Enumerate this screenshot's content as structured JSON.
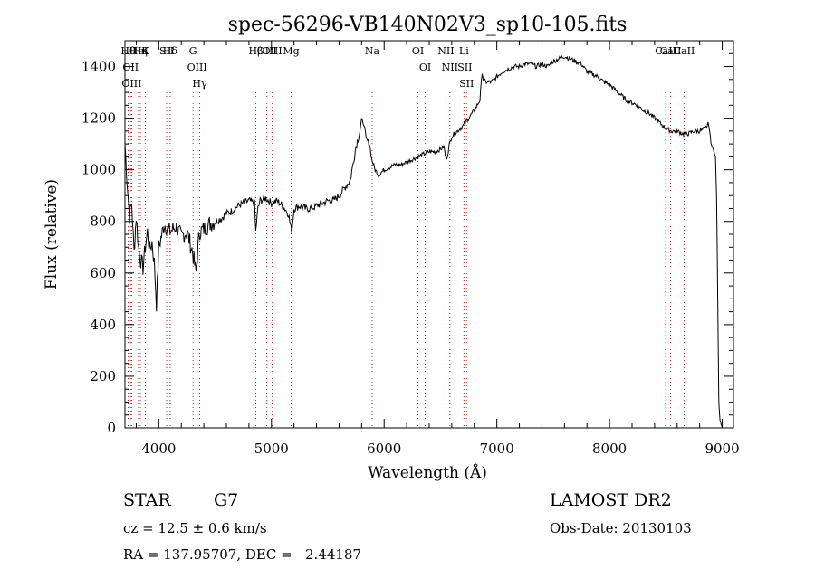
{
  "chart_data": {
    "type": "line",
    "title": "spec-56296-VB140N02V3_sp10-105.fits",
    "xlabel": "Wavelength (Å)",
    "ylabel": "Flux (relative)",
    "xlim": [
      3700,
      9100
    ],
    "ylim": [
      0,
      1500
    ],
    "xticks": [
      4000,
      5000,
      6000,
      7000,
      8000,
      9000
    ],
    "yticks": [
      0,
      200,
      400,
      600,
      800,
      1000,
      1200,
      1400
    ],
    "grid": false,
    "series": [
      {
        "x": [
          3700,
          3720,
          3740,
          3760,
          3780,
          3800,
          3820,
          3840,
          3860,
          3880,
          3900,
          3920,
          3940,
          3960,
          3980,
          4000,
          4050,
          4100,
          4150,
          4200,
          4250,
          4300,
          4330,
          4360,
          4400,
          4450,
          4500,
          4550,
          4600,
          4650,
          4700,
          4750,
          4800,
          4850,
          4860,
          4880,
          4900,
          4950,
          5000,
          5050,
          5100,
          5150,
          5180,
          5200,
          5250,
          5300,
          5350,
          5400,
          5450,
          5500,
          5550,
          5600,
          5650,
          5700,
          5750,
          5780,
          5800,
          5820,
          5840,
          5870,
          5890,
          5920,
          5950,
          6000,
          6050,
          6100,
          6150,
          6200,
          6250,
          6300,
          6350,
          6400,
          6450,
          6500,
          6530,
          6550,
          6563,
          6580,
          6600,
          6650,
          6700,
          6750,
          6800,
          6850,
          6870,
          6880,
          6900,
          6950,
          7000,
          7050,
          7100,
          7150,
          7200,
          7250,
          7300,
          7350,
          7400,
          7450,
          7500,
          7550,
          7600,
          7650,
          7700,
          7750,
          7800,
          7850,
          7900,
          7950,
          8000,
          8050,
          8100,
          8150,
          8200,
          8250,
          8300,
          8350,
          8400,
          8450,
          8500,
          8550,
          8600,
          8650,
          8700,
          8750,
          8800,
          8850,
          8880,
          8900,
          8920,
          8940,
          8950,
          8960,
          8970,
          8980,
          9000
        ],
        "y": [
          1100,
          950,
          820,
          870,
          680,
          820,
          700,
          650,
          620,
          700,
          760,
          690,
          720,
          640,
          480,
          700,
          790,
          760,
          780,
          740,
          760,
          680,
          600,
          760,
          770,
          790,
          800,
          810,
          830,
          840,
          860,
          870,
          880,
          870,
          760,
          850,
          880,
          890,
          870,
          880,
          860,
          830,
          760,
          850,
          860,
          850,
          850,
          860,
          870,
          880,
          880,
          900,
          930,
          960,
          1090,
          1140,
          1190,
          1180,
          1120,
          1100,
          1040,
          1000,
          980,
          1000,
          1010,
          1020,
          1020,
          1030,
          1040,
          1050,
          1060,
          1070,
          1070,
          1080,
          1090,
          1040,
          1060,
          1100,
          1130,
          1150,
          1170,
          1200,
          1230,
          1270,
          1380,
          1350,
          1340,
          1340,
          1360,
          1380,
          1390,
          1400,
          1400,
          1410,
          1410,
          1400,
          1410,
          1400,
          1420,
          1430,
          1440,
          1430,
          1420,
          1410,
          1380,
          1370,
          1360,
          1340,
          1330,
          1310,
          1290,
          1270,
          1260,
          1250,
          1230,
          1220,
          1200,
          1180,
          1160,
          1150,
          1150,
          1140,
          1140,
          1150,
          1150,
          1160,
          1180,
          1100,
          1080,
          1050,
          900,
          500,
          100,
          30,
          0
        ]
      }
    ],
    "lines": [
      {
        "labels": [
          "Hθ",
          "OII",
          "OIII"
        ],
        "x": [
          3728,
          3750,
          3760
        ]
      },
      {
        "labels": [
          "HeI"
        ],
        "x": [
          3820
        ]
      },
      {
        "labels": [
          "Hη"
        ],
        "x": [
          3836
        ]
      },
      {
        "labels": [
          "K"
        ],
        "x": [
          3880
        ]
      },
      {
        "labels": [
          "Hδ"
        ],
        "x": [
          4101
        ]
      },
      {
        "labels": [
          "SII"
        ],
        "x": [
          4070
        ]
      },
      {
        "labels": [
          "G",
          "OIII",
          "Hγ"
        ],
        "x": [
          4304,
          4340,
          4363
        ]
      },
      {
        "labels": [
          "Hβ"
        ],
        "x": [
          4861
        ]
      },
      {
        "labels": [
          "OIII"
        ],
        "x": [
          4959
        ]
      },
      {
        "labels": [
          "OIII"
        ],
        "x": [
          5007
        ]
      },
      {
        "labels": [
          "Mg"
        ],
        "x": [
          5175
        ]
      },
      {
        "labels": [
          "Na"
        ],
        "x": [
          5893
        ]
      },
      {
        "labels": [
          "OI",
          "OI"
        ],
        "x": [
          6300,
          6364
        ]
      },
      {
        "labels": [
          "NII",
          "NII"
        ],
        "x": [
          6548,
          6583
        ]
      },
      {
        "labels": [
          "Li",
          "SII",
          "SII"
        ],
        "x": [
          6708,
          6716,
          6731
        ]
      },
      {
        "labels": [
          "CaII"
        ],
        "x": [
          8498
        ]
      },
      {
        "labels": [
          "CaII"
        ],
        "x": [
          8542
        ]
      },
      {
        "labels": [
          "CaII"
        ],
        "x": [
          8662
        ]
      }
    ]
  },
  "info": {
    "object": "STAR",
    "subclass": "G7",
    "survey": "LAMOST DR2",
    "cz": "cz = 12.5 ± 0.6 km/s",
    "obs_date": "Obs-Date: 20130103",
    "coords": "RA = 137.95707, DEC =   2.44187"
  }
}
